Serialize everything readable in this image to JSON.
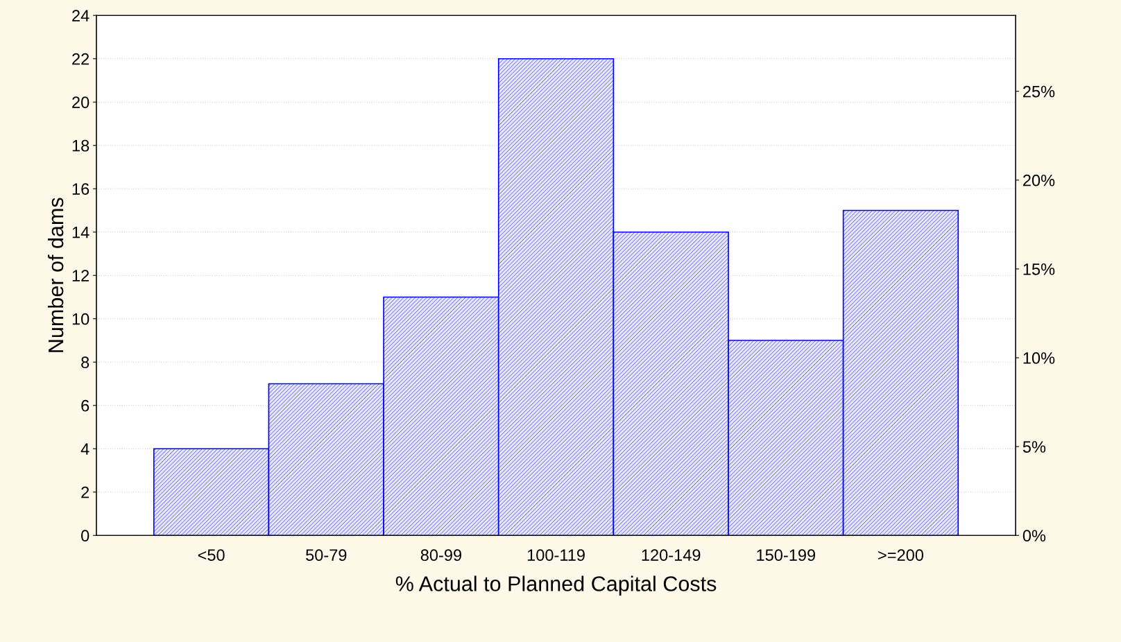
{
  "chart_data": {
    "type": "bar",
    "xlabel": "% Actual to Planned Capital Costs",
    "ylabel": "Number of dams",
    "categories": [
      "<50",
      "50-79",
      "80-99",
      "100-119",
      "120-149",
      "150-199",
      ">=200"
    ],
    "values": [
      4,
      7,
      11,
      22,
      14,
      9,
      15
    ],
    "color": "#0000ff",
    "ylim": [
      0,
      24
    ],
    "yticks": [
      0,
      2,
      4,
      6,
      8,
      10,
      12,
      14,
      16,
      18,
      20,
      22,
      24
    ],
    "y2lim": [
      0,
      29.27
    ],
    "y2ticks": [
      {
        "value": 0,
        "label": "0%"
      },
      {
        "value": 5,
        "label": "5%"
      },
      {
        "value": 10,
        "label": "10%"
      },
      {
        "value": 15,
        "label": "15%"
      },
      {
        "value": 20,
        "label": "20%"
      },
      {
        "value": 25,
        "label": "25%"
      }
    ],
    "grid": "y",
    "legend": false
  }
}
